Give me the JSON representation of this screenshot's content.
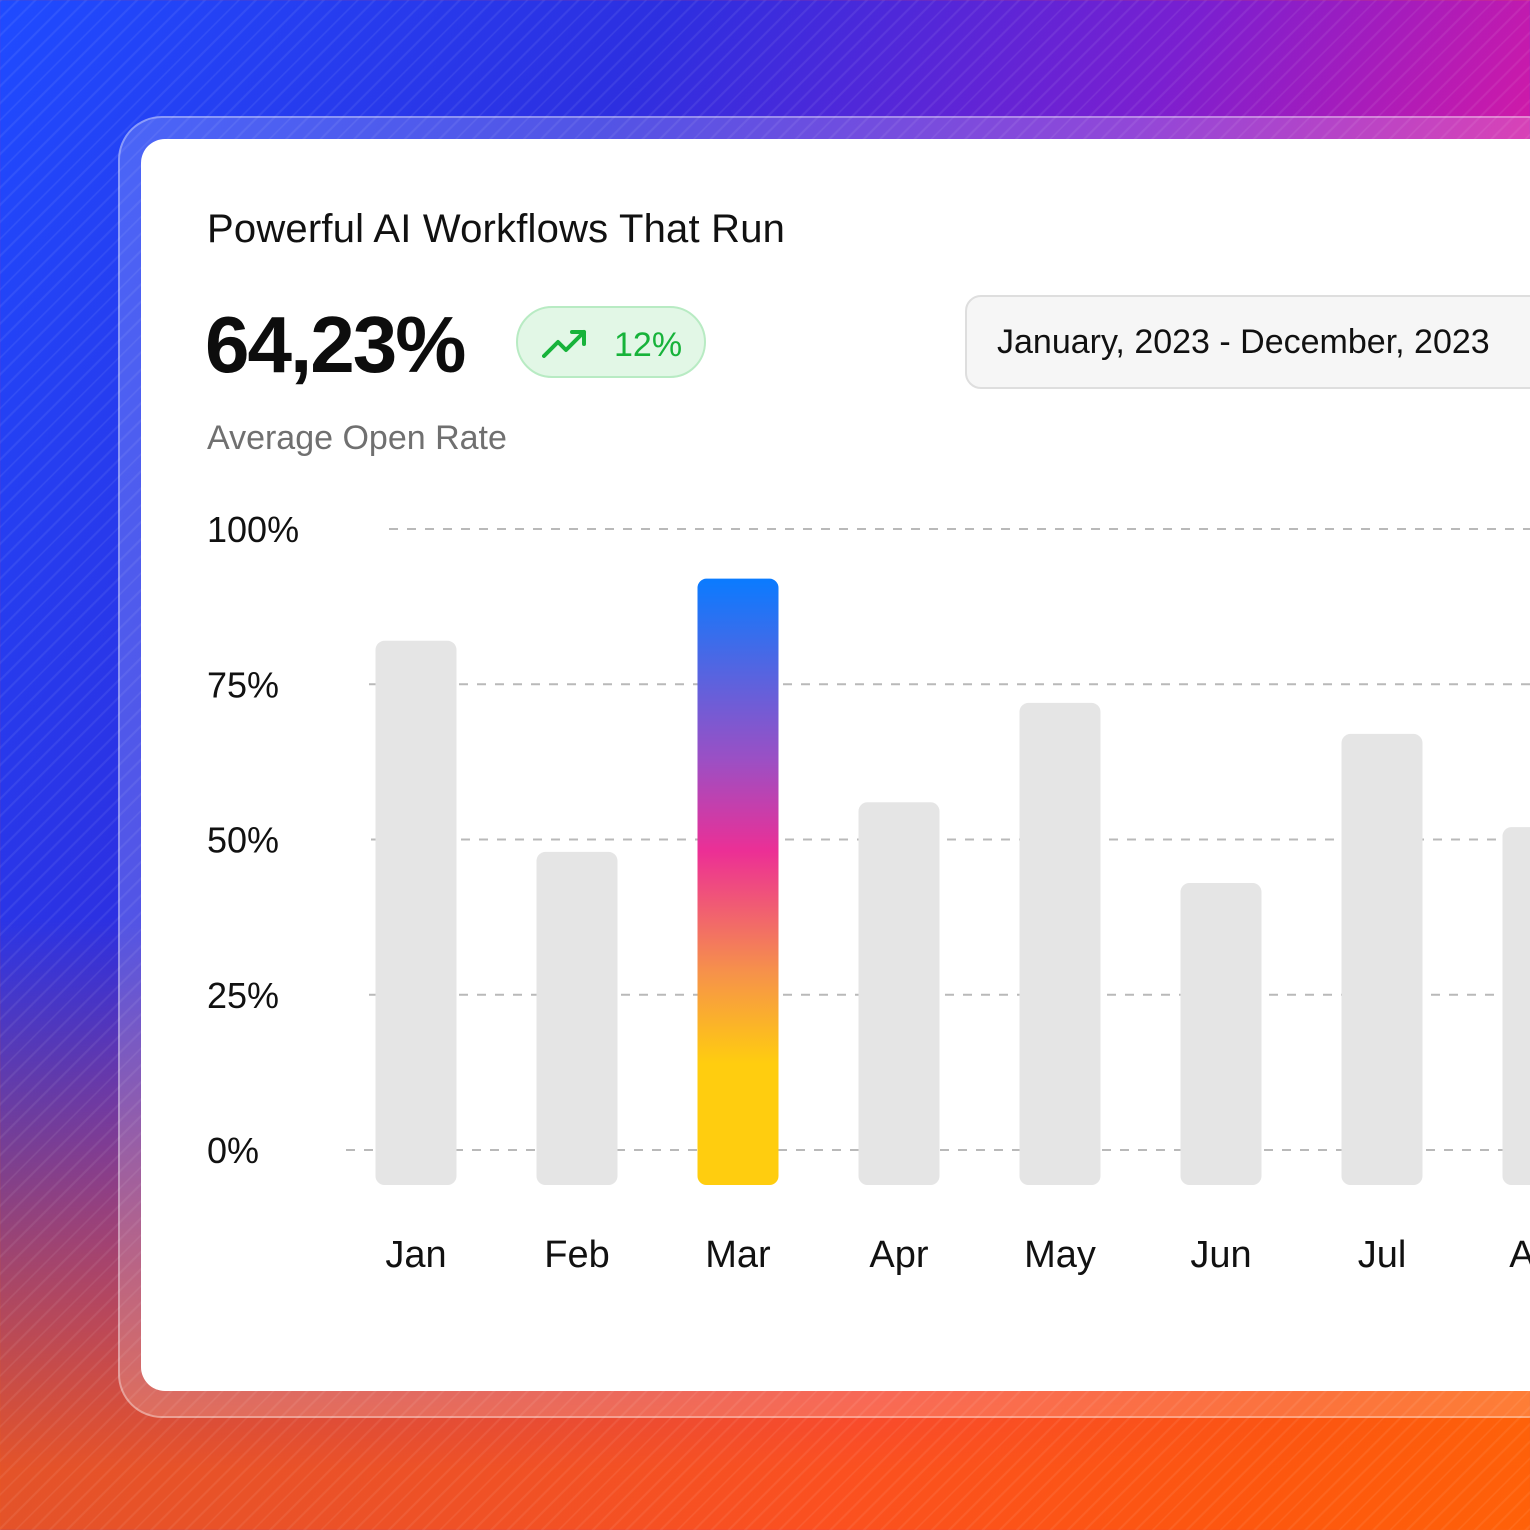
{
  "card": {
    "title": "Powerful AI Workflows That Run",
    "kpi_value": "64,23%",
    "trend": {
      "icon": "trending-up-icon",
      "label": "12%",
      "color": "#17b33a"
    },
    "subtitle": "Average Open Rate",
    "date_range": "January, 2023 - December, 2023"
  },
  "chart_data": {
    "type": "bar",
    "title": "Average Open Rate",
    "categories": [
      "Jan",
      "Feb",
      "Mar",
      "Apr",
      "May",
      "Jun",
      "Jul",
      "Aug"
    ],
    "values": [
      82,
      48,
      92,
      56,
      72,
      43,
      67,
      52
    ],
    "highlight_index": 2,
    "ylim": [
      0,
      100
    ],
    "yticks": [
      0,
      25,
      50,
      75,
      100
    ],
    "ytick_labels": [
      "0%",
      "25%",
      "50%",
      "75%",
      "100%"
    ],
    "grid": true,
    "colors": {
      "bar": "#e5e5e5",
      "highlight_gradient": [
        "#0a7bff",
        "#9c4fc4",
        "#ec2f95",
        "#f6924a",
        "#ffcd0f"
      ],
      "grid": "#b9b9b9"
    }
  }
}
